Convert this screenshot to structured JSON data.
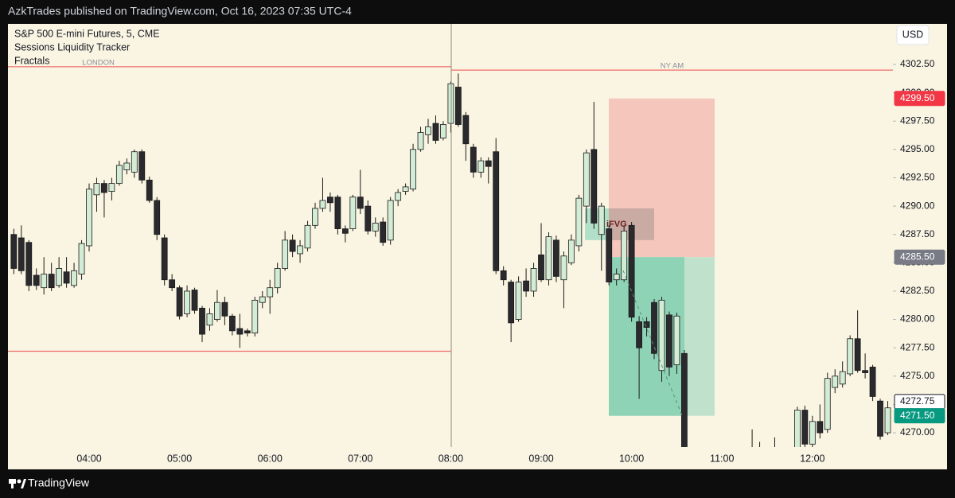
{
  "header": {
    "published": "AzkTrades published on TradingView.com, Oct 16, 2023 07:35 UTC-4"
  },
  "footer": {
    "brand": "TradingView"
  },
  "chart_data": {
    "type": "candlestick",
    "title": "S&P 500 E-mini Futures, 5, CME",
    "indicators": [
      "Sessions Liquidity Tracker",
      "Fractals"
    ],
    "currency": "USD",
    "categories": [
      null,
      null,
      null,
      null,
      null,
      null,
      null,
      null,
      null,
      null,
      "04:00",
      null,
      null,
      null,
      null,
      null,
      null,
      null,
      null,
      null,
      null,
      null,
      "05:00",
      null,
      null,
      null,
      null,
      null,
      null,
      null,
      null,
      null,
      null,
      null,
      "06:00",
      null,
      null,
      null,
      null,
      null,
      null,
      null,
      null,
      null,
      null,
      null,
      "07:00",
      null,
      null,
      null,
      null,
      null,
      null,
      null,
      null,
      null,
      null,
      null,
      "08:00",
      null,
      null,
      null,
      null,
      null,
      null,
      null,
      null,
      null,
      null,
      null,
      "09:00",
      null,
      null,
      null,
      null,
      null,
      null,
      null,
      null,
      null,
      null,
      null,
      "10:00",
      null,
      null,
      null,
      null,
      null,
      null,
      null,
      null,
      null,
      null,
      null,
      "11:00",
      null,
      null,
      null,
      null,
      null,
      null,
      null,
      null,
      null,
      null,
      null,
      "12:00",
      null,
      null,
      null,
      null,
      null,
      null,
      null,
      null,
      null,
      null
    ],
    "open": [
      4287.5,
      4287.2,
      4286.8,
      4283.9,
      4282.8,
      4284,
      4283,
      4284.2,
      4283,
      4284,
      4286.5,
      4291,
      4292,
      4291.3,
      4292,
      4293.2,
      4293,
      4294.8,
      4292.3,
      4290.5,
      4287.2,
      4283.5,
      4282.8,
      4280.5,
      4282.6,
      4281,
      4279.5,
      4280,
      4281.5,
      4280.3,
      4279.2,
      4279,
      4278.8,
      4281.5,
      4282,
      4282.8,
      4284.5,
      4287,
      4285.8,
      4286.3,
      4288.3,
      4289.8,
      4290.8,
      4290.8,
      4288,
      4288,
      4290.8,
      4290,
      4287.8,
      4288.6,
      4287,
      4290.5,
      4291.3,
      4291.5,
      4295,
      4296.3,
      4297.3,
      4296,
      4297.3,
      4300.5,
      4298,
      4295.2,
      4293,
      4294,
      4294.8,
      4284.3,
      4283.3,
      4280,
      4283.4,
      4282.5,
      4285.7,
      4283.5,
      4287,
      4283.5,
      4285,
      4286.5,
      4290,
      4295,
      4287.5,
      4288,
      4283.5,
      4283.5,
      4288.3,
      4279.8,
      4279.8,
      4281.5,
      4275.5,
      4280.4,
      4276,
      4277,
      null,
      null,
      null,
      null,
      null,
      null,
      null,
      null,
      4267,
      4268,
      null,
      4267.5,
      null,
      null,
      4268.5,
      4272,
      4269,
      4271,
      4270.3,
      4274,
      4274.3,
      4275.2,
      4278.3,
      4275.5,
      4275.8,
      4272.8,
      4270
    ],
    "high": [
      4288,
      4288.3,
      4287,
      4284.5,
      4285.5,
      4285,
      4285.5,
      4285.5,
      4285,
      4287,
      4292,
      4292.5,
      4292.3,
      4292.5,
      4294,
      4294.2,
      4295,
      4295,
      4292.6,
      4290.8,
      4287.5,
      4284,
      4283,
      4283,
      4282.8,
      4281.2,
      4281,
      4282.6,
      4282,
      4280.5,
      4280.5,
      4279.2,
      4282,
      4282.5,
      4283.5,
      4285,
      4287.8,
      4287.5,
      4287,
      4288.7,
      4290.3,
      4292.5,
      4291.2,
      4291,
      4288.3,
      4291,
      4293.2,
      4290.5,
      4289,
      4289,
      4290.8,
      4291.5,
      4292,
      4295.5,
      4297,
      4297.7,
      4298,
      4297.5,
      4301,
      4301.7,
      4298.3,
      4295.5,
      4294.3,
      4294.3,
      4296,
      4284.7,
      4283.5,
      4283.8,
      4284.5,
      4285,
      4288.5,
      4287.7,
      4287.4,
      4286,
      4287.5,
      4291,
      4295,
      4299.2,
      4290.3,
      4288.3,
      4284.5,
      4288.3,
      4288.6,
      4280.3,
      4280.2,
      4281.8,
      4282,
      4280.7,
      4280.6,
      4277.3,
      null,
      null,
      null,
      null,
      null,
      null,
      null,
      null,
      4270.3,
      4269.2,
      null,
      4269.6,
      null,
      null,
      4272.3,
      4272.4,
      4271.5,
      4272.5,
      4275.3,
      4275.6,
      4276.3,
      4278.6,
      4280.8,
      4277,
      4276,
      4273,
      4272.8
    ],
    "low": [
      4284,
      4284,
      4282.5,
      4282.6,
      4282.2,
      4282.5,
      4282.8,
      4282.8,
      4282.8,
      4283.5,
      4286,
      4289.5,
      4289,
      4290.5,
      4291.8,
      4292.8,
      4292.5,
      4292,
      4290.3,
      4287,
      4283,
      4282.5,
      4280,
      4280.2,
      4280.5,
      4278,
      4279,
      4279.8,
      4279.5,
      4278.6,
      4277.5,
      4278.5,
      4278.5,
      4281,
      4280.5,
      4282.3,
      4284.3,
      4285.5,
      4285,
      4286,
      4288,
      4289.5,
      4289.5,
      4287.5,
      4286.8,
      4287.8,
      4289.3,
      4287.5,
      4287.3,
      4286.5,
      4286.6,
      4290,
      4291,
      4291.3,
      4294.8,
      4295.5,
      4295.5,
      4295.8,
      4296.5,
      4297,
      4294,
      4292.5,
      4292.5,
      4292,
      4284,
      4283,
      4278,
      4279.8,
      4282,
      4282,
      4283.3,
      4283,
      4283.3,
      4281,
      4284.8,
      4286,
      4288.5,
      4288,
      4284.3,
      4283,
      4283,
      4283.3,
      4279.8,
      4273,
      4278.5,
      4276.5,
      4274.5,
      4275,
      4275.2,
      4268,
      null,
      null,
      null,
      null,
      null,
      null,
      null,
      null,
      4266.5,
      4266.8,
      null,
      4267,
      null,
      null,
      4268,
      4268.5,
      4268.5,
      4269.5,
      4270,
      4273.5,
      4274,
      4275,
      4275.3,
      4274.8,
      4272.8,
      4269.4,
      4269.8
    ],
    "close": [
      4284.5,
      4284.3,
      4283,
      4283,
      4284,
      4282.8,
      4284.5,
      4283.2,
      4284.3,
      4286.7,
      4291.5,
      4292,
      4291.2,
      4292,
      4293.6,
      4293.8,
      4294.8,
      4292.3,
      4290.5,
      4287.5,
      4283.5,
      4282.8,
      4280.3,
      4282.5,
      4280.8,
      4278.7,
      4280.5,
      4281.5,
      4280.3,
      4279,
      4278.7,
      4278.8,
      4281.7,
      4282,
      4282.8,
      4284.5,
      4287,
      4286,
      4286.5,
      4288.3,
      4289.8,
      4290.5,
      4290.3,
      4288,
      4287.6,
      4290.8,
      4289.8,
      4287.8,
      4288.5,
      4286.8,
      4290.5,
      4291.2,
      4291.7,
      4295,
      4296.5,
      4297,
      4295.8,
      4297.2,
      4300.8,
      4297.2,
      4295.5,
      4293,
      4294,
      4293.5,
      4284.3,
      4283.5,
      4279.7,
      4283.3,
      4282.5,
      4284.5,
      4283.5,
      4287.3,
      4283.8,
      4285.6,
      4287,
      4290.7,
      4294.7,
      4288.5,
      4290,
      4283.3,
      4284,
      4287.8,
      4280.2,
      4277.5,
      4279.3,
      4277,
      4281.7,
      4275.8,
      4280.3,
      4268.5,
      null,
      null,
      null,
      null,
      null,
      null,
      null,
      null,
      4268,
      4267.5,
      null,
      4268.2,
      null,
      null,
      4272,
      4269,
      4271,
      4270,
      4274.8,
      4275,
      4275.4,
      4278.3,
      4275.5,
      4275.3,
      4273.2,
      4269.7,
      4272.2
    ],
    "up_color": "#d3ecd5",
    "down_color": "#2a2a2e",
    "ylim": [
      4268.74,
      4306.08
    ],
    "yticks": [
      {
        "value": 4270,
        "label": "4270.00"
      },
      {
        "value": 4272.5,
        "label": "4272.50"
      },
      {
        "value": 4275,
        "label": "4275.00"
      },
      {
        "value": 4277.5,
        "label": "4277.50"
      },
      {
        "value": 4280,
        "label": "4280.00"
      },
      {
        "value": 4282.5,
        "label": "4282.50"
      },
      {
        "value": 4285,
        "label": "4285.00"
      },
      {
        "value": 4287.5,
        "label": "4287.50"
      },
      {
        "value": 4290,
        "label": "4290.00"
      },
      {
        "value": 4292.5,
        "label": "4292.50"
      },
      {
        "value": 4295,
        "label": "4295.00"
      },
      {
        "value": 4297.5,
        "label": "4297.50"
      },
      {
        "value": 4300,
        "label": "4300.00"
      },
      {
        "value": 4302.5,
        "label": "4302.50"
      }
    ],
    "sessions": [
      {
        "label": "LONDON",
        "value": 4302.3
      },
      {
        "label": "NY AM",
        "value": 4302.0
      }
    ],
    "session_low": 4277.2,
    "position": {
      "stop": 4299.5,
      "entry": 4285.5,
      "target": 4271.5
    },
    "fvg": {
      "label": "iFVG",
      "top": 4289.8,
      "bottom": 4287
    },
    "price_tags": [
      {
        "value": 4299.5,
        "label": "4299.50",
        "color": "#f23645"
      },
      {
        "value": 4285.5,
        "label": "4285.50",
        "color": "#787b86"
      },
      {
        "value": 4272.75,
        "label": "4272.75",
        "color": "#ffffff"
      },
      {
        "value": 4271.5,
        "label": "4271.50",
        "color": "#089981"
      }
    ]
  }
}
